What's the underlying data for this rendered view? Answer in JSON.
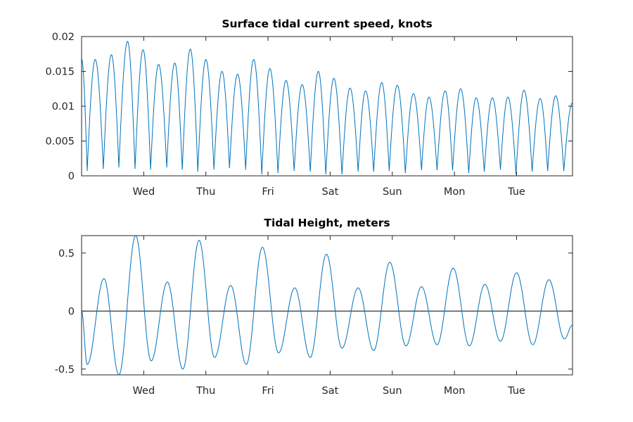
{
  "colors": {
    "series": "#0072bd",
    "axis": "#262626",
    "zero_line": "#000000",
    "background": "#ffffff"
  },
  "chart_data": [
    {
      "type": "line",
      "title": "Surface tidal current speed, knots",
      "xlabel": "",
      "ylabel": "",
      "xlim": [
        0,
        7.9
      ],
      "ylim": [
        0,
        0.02
      ],
      "x_ticks": [
        {
          "x": 1,
          "label": "Wed"
        },
        {
          "x": 2,
          "label": "Thu"
        },
        {
          "x": 3,
          "label": "Fri"
        },
        {
          "x": 4,
          "label": "Sat"
        },
        {
          "x": 5,
          "label": "Sun"
        },
        {
          "x": 6,
          "label": "Mon"
        },
        {
          "x": 7,
          "label": "Tue"
        }
      ],
      "y_ticks": [
        {
          "y": 0,
          "label": "0"
        },
        {
          "y": 0.005,
          "label": "0.005"
        },
        {
          "y": 0.01,
          "label": "0.01"
        },
        {
          "y": 0.015,
          "label": "0.015"
        },
        {
          "y": 0.02,
          "label": "0.02"
        }
      ],
      "grid": false,
      "series": [
        {
          "x_unit": "days",
          "peaks": [
            {
              "x": 0.0,
              "y": 0.0168
            },
            {
              "x": 0.22,
              "y": 0.0167
            },
            {
              "x": 0.48,
              "y": 0.0174
            },
            {
              "x": 0.74,
              "y": 0.0193
            },
            {
              "x": 0.99,
              "y": 0.0181
            },
            {
              "x": 1.24,
              "y": 0.016
            },
            {
              "x": 1.5,
              "y": 0.0162
            },
            {
              "x": 1.75,
              "y": 0.0182
            },
            {
              "x": 2.0,
              "y": 0.0167
            },
            {
              "x": 2.26,
              "y": 0.015
            },
            {
              "x": 2.51,
              "y": 0.0146
            },
            {
              "x": 2.77,
              "y": 0.0167
            },
            {
              "x": 3.03,
              "y": 0.0154
            },
            {
              "x": 3.29,
              "y": 0.0137
            },
            {
              "x": 3.55,
              "y": 0.0131
            },
            {
              "x": 3.81,
              "y": 0.015
            },
            {
              "x": 4.06,
              "y": 0.014
            },
            {
              "x": 4.32,
              "y": 0.0126
            },
            {
              "x": 4.57,
              "y": 0.0122
            },
            {
              "x": 4.83,
              "y": 0.0134
            },
            {
              "x": 5.08,
              "y": 0.013
            },
            {
              "x": 5.34,
              "y": 0.0118
            },
            {
              "x": 5.59,
              "y": 0.0113
            },
            {
              "x": 5.85,
              "y": 0.0122
            },
            {
              "x": 6.1,
              "y": 0.0125
            },
            {
              "x": 6.35,
              "y": 0.0112
            },
            {
              "x": 6.61,
              "y": 0.0112
            },
            {
              "x": 6.86,
              "y": 0.0113
            },
            {
              "x": 7.12,
              "y": 0.0123
            },
            {
              "x": 7.38,
              "y": 0.0111
            },
            {
              "x": 7.63,
              "y": 0.0115
            },
            {
              "x": 7.9,
              "y": 0.0105
            }
          ],
          "troughs": [
            {
              "x": 0.09,
              "y": 0.0007
            },
            {
              "x": 0.35,
              "y": 0.001
            },
            {
              "x": 0.6,
              "y": 0.0012
            },
            {
              "x": 0.86,
              "y": 0.001
            },
            {
              "x": 1.11,
              "y": 0.0009
            },
            {
              "x": 1.37,
              "y": 0.0012
            },
            {
              "x": 1.62,
              "y": 0.0009
            },
            {
              "x": 1.87,
              "y": 0.0006
            },
            {
              "x": 2.13,
              "y": 0.0009
            },
            {
              "x": 2.38,
              "y": 0.0011
            },
            {
              "x": 2.64,
              "y": 0.0009
            },
            {
              "x": 2.9,
              "y": 0.0002
            },
            {
              "x": 3.16,
              "y": 0.0004
            },
            {
              "x": 3.42,
              "y": 0.0007
            },
            {
              "x": 3.68,
              "y": 0.0006
            },
            {
              "x": 3.93,
              "y": 0.0002
            },
            {
              "x": 4.19,
              "y": 0.0002
            },
            {
              "x": 4.45,
              "y": 0.0006
            },
            {
              "x": 4.7,
              "y": 0.0006
            },
            {
              "x": 4.95,
              "y": 0.0007
            },
            {
              "x": 5.21,
              "y": 0.0004
            },
            {
              "x": 5.47,
              "y": 0.0008
            },
            {
              "x": 5.72,
              "y": 0.0008
            },
            {
              "x": 5.97,
              "y": 0.0008
            },
            {
              "x": 6.23,
              "y": 0.0004
            },
            {
              "x": 6.48,
              "y": 0.0006
            },
            {
              "x": 6.74,
              "y": 0.0009
            },
            {
              "x": 6.99,
              "y": 0.0002
            },
            {
              "x": 7.25,
              "y": 0.0006
            },
            {
              "x": 7.5,
              "y": 0.0007
            },
            {
              "x": 7.76,
              "y": 0.0007
            }
          ]
        }
      ]
    },
    {
      "type": "line",
      "title": "Tidal Height, meters",
      "xlabel": "",
      "ylabel": "",
      "xlim": [
        0,
        7.9
      ],
      "ylim": [
        -0.55,
        0.65
      ],
      "x_ticks": [
        {
          "x": 1,
          "label": "Wed"
        },
        {
          "x": 2,
          "label": "Thu"
        },
        {
          "x": 3,
          "label": "Fri"
        },
        {
          "x": 4,
          "label": "Sat"
        },
        {
          "x": 5,
          "label": "Sun"
        },
        {
          "x": 6,
          "label": "Mon"
        },
        {
          "x": 7,
          "label": "Tue"
        }
      ],
      "y_ticks": [
        {
          "y": -0.5,
          "label": "-0.5"
        },
        {
          "y": 0,
          "label": "0"
        },
        {
          "y": 0.5,
          "label": "0.5"
        }
      ],
      "grid": false,
      "reference_line": {
        "y": 0
      },
      "series": [
        {
          "x_unit": "days",
          "extrema": [
            {
              "x": 0.0,
              "y": 0.0
            },
            {
              "x": 0.09,
              "y": -0.46
            },
            {
              "x": 0.36,
              "y": 0.28
            },
            {
              "x": 0.6,
              "y": -0.55
            },
            {
              "x": 0.87,
              "y": 0.65
            },
            {
              "x": 1.12,
              "y": -0.43
            },
            {
              "x": 1.38,
              "y": 0.25
            },
            {
              "x": 1.63,
              "y": -0.5
            },
            {
              "x": 1.89,
              "y": 0.61
            },
            {
              "x": 2.14,
              "y": -0.4
            },
            {
              "x": 2.4,
              "y": 0.22
            },
            {
              "x": 2.65,
              "y": -0.46
            },
            {
              "x": 2.91,
              "y": 0.55
            },
            {
              "x": 3.17,
              "y": -0.36
            },
            {
              "x": 3.43,
              "y": 0.2
            },
            {
              "x": 3.68,
              "y": -0.4
            },
            {
              "x": 3.94,
              "y": 0.49
            },
            {
              "x": 4.19,
              "y": -0.32
            },
            {
              "x": 4.45,
              "y": 0.2
            },
            {
              "x": 4.7,
              "y": -0.34
            },
            {
              "x": 4.96,
              "y": 0.42
            },
            {
              "x": 5.22,
              "y": -0.3
            },
            {
              "x": 5.47,
              "y": 0.21
            },
            {
              "x": 5.72,
              "y": -0.29
            },
            {
              "x": 5.98,
              "y": 0.37
            },
            {
              "x": 6.24,
              "y": -0.3
            },
            {
              "x": 6.49,
              "y": 0.23
            },
            {
              "x": 6.74,
              "y": -0.26
            },
            {
              "x": 7.0,
              "y": 0.33
            },
            {
              "x": 7.26,
              "y": -0.29
            },
            {
              "x": 7.52,
              "y": 0.27
            },
            {
              "x": 7.77,
              "y": -0.24
            },
            {
              "x": 7.9,
              "y": -0.12
            }
          ]
        }
      ]
    }
  ]
}
